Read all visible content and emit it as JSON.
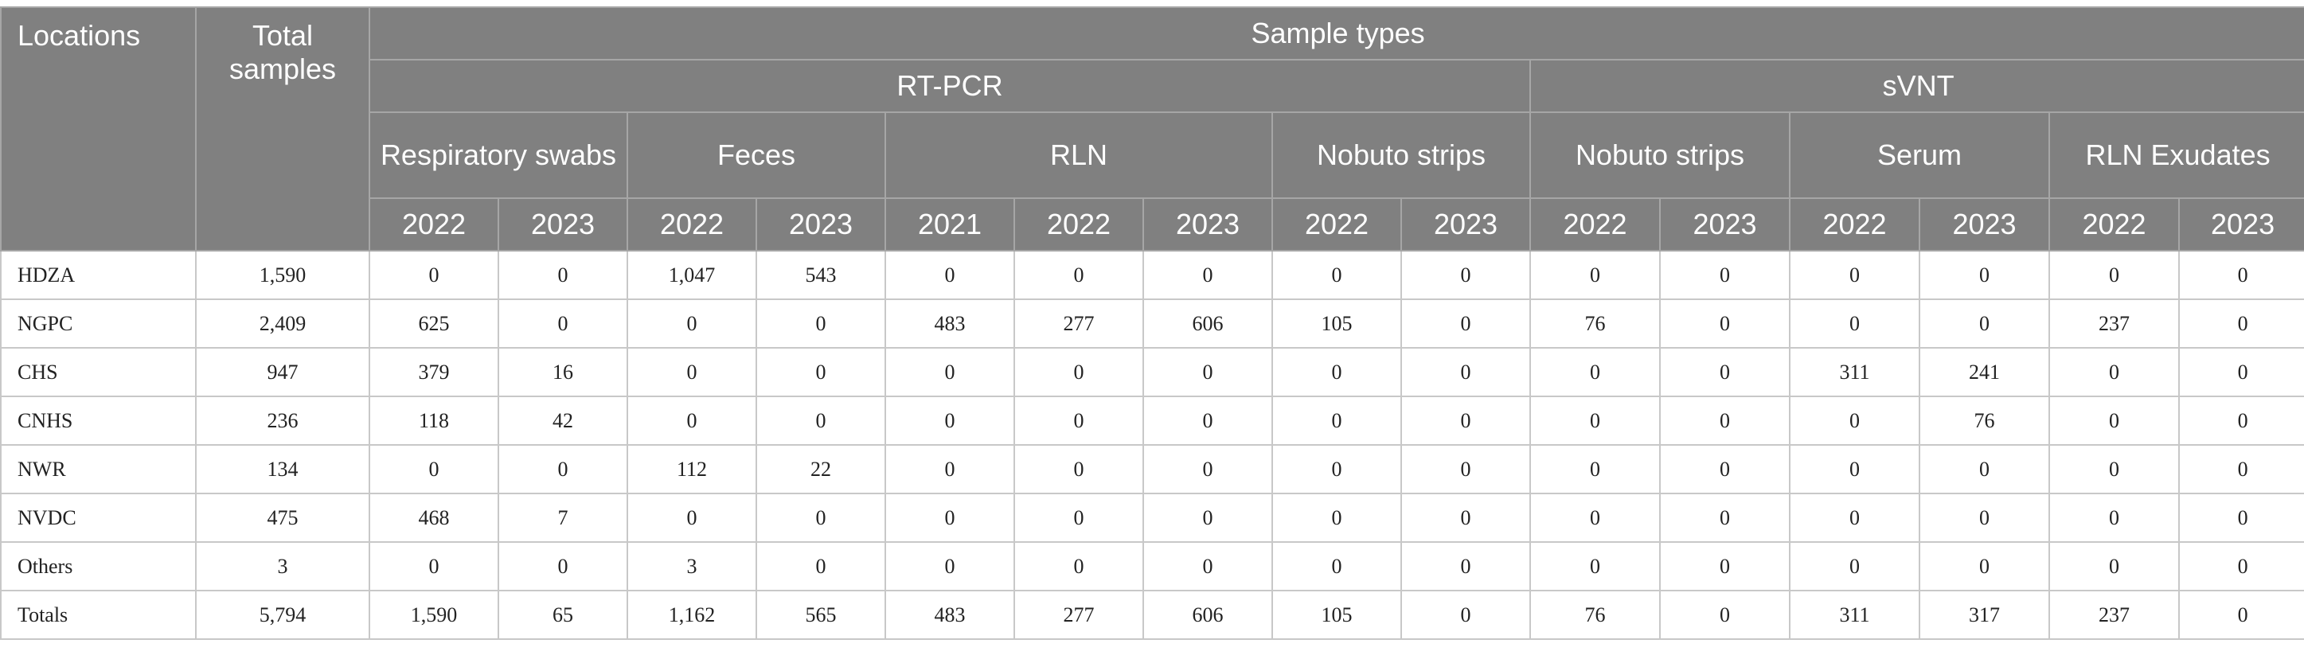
{
  "header": {
    "locations": "Locations",
    "total_samples": "Total samples",
    "sample_types": "Sample types",
    "methods": [
      "RT-PCR",
      "sVNT"
    ],
    "subgroups": [
      "Respiratory swabs",
      "Feces",
      "RLN",
      "Nobuto strips",
      "Nobuto strips",
      "Serum",
      "RLN Exudates"
    ],
    "years": [
      "2022",
      "2023",
      "2022",
      "2023",
      "2021",
      "2022",
      "2023",
      "2022",
      "2023",
      "2022",
      "2023",
      "2022",
      "2023",
      "2022",
      "2023"
    ]
  },
  "rows": [
    {
      "location": "HDZA",
      "total": "1,590",
      "values": [
        "0",
        "0",
        "1,047",
        "543",
        "0",
        "0",
        "0",
        "0",
        "0",
        "0",
        "0",
        "0",
        "0",
        "0",
        "0"
      ]
    },
    {
      "location": "NGPC",
      "total": "2,409",
      "values": [
        "625",
        "0",
        "0",
        "0",
        "483",
        "277",
        "606",
        "105",
        "0",
        "76",
        "0",
        "0",
        "0",
        "237",
        "0"
      ]
    },
    {
      "location": "CHS",
      "total": "947",
      "values": [
        "379",
        "16",
        "0",
        "0",
        "0",
        "0",
        "0",
        "0",
        "0",
        "0",
        "0",
        "311",
        "241",
        "0",
        "0"
      ]
    },
    {
      "location": "CNHS",
      "total": "236",
      "values": [
        "118",
        "42",
        "0",
        "0",
        "0",
        "0",
        "0",
        "0",
        "0",
        "0",
        "0",
        "0",
        "76",
        "0",
        "0"
      ]
    },
    {
      "location": "NWR",
      "total": "134",
      "values": [
        "0",
        "0",
        "112",
        "22",
        "0",
        "0",
        "0",
        "0",
        "0",
        "0",
        "0",
        "0",
        "0",
        "0",
        "0"
      ]
    },
    {
      "location": "NVDC",
      "total": "475",
      "values": [
        "468",
        "7",
        "0",
        "0",
        "0",
        "0",
        "0",
        "0",
        "0",
        "0",
        "0",
        "0",
        "0",
        "0",
        "0"
      ]
    },
    {
      "location": "Others",
      "total": "3",
      "values": [
        "0",
        "0",
        "3",
        "0",
        "0",
        "0",
        "0",
        "0",
        "0",
        "0",
        "0",
        "0",
        "0",
        "0",
        "0"
      ]
    },
    {
      "location": "Totals",
      "total": "5,794",
      "values": [
        "1,590",
        "65",
        "1,162",
        "565",
        "483",
        "277",
        "606",
        "105",
        "0",
        "76",
        "0",
        "311",
        "317",
        "237",
        "0"
      ]
    }
  ]
}
